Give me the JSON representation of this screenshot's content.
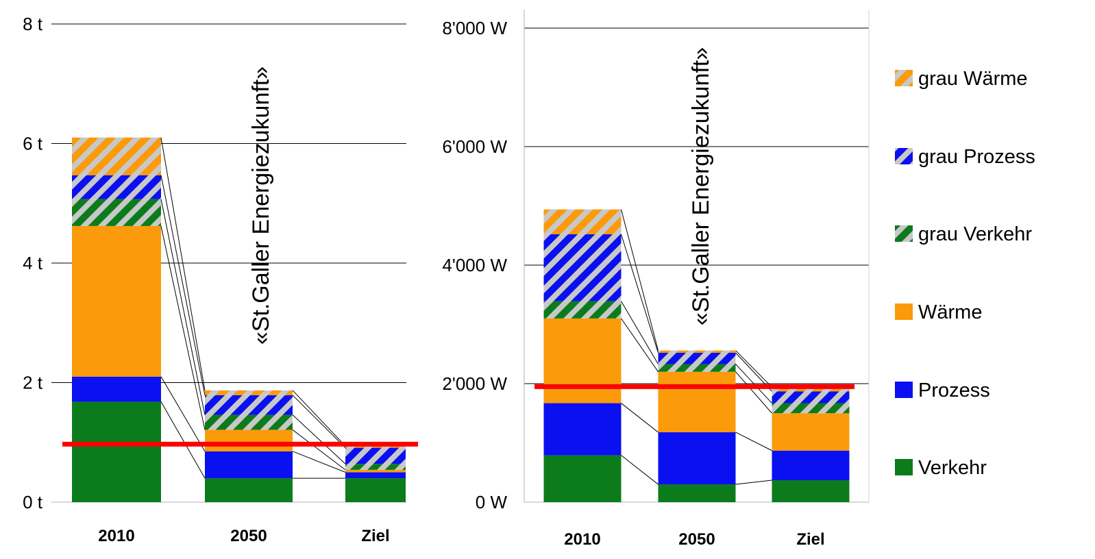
{
  "stack_order": [
    "Verkehr",
    "Prozess",
    "Wärme",
    "grau Verkehr",
    "grau Prozess",
    "grau Wärme"
  ],
  "series_styles": [
    {
      "name": "Verkehr",
      "color": "#0c7b1c",
      "hatched": false
    },
    {
      "name": "Prozess",
      "color": "#0a10f0",
      "hatched": false
    },
    {
      "name": "Wärme",
      "color": "#fb9a0a",
      "hatched": false
    },
    {
      "name": "grau Verkehr",
      "color": "#0c7b1c",
      "hatched": true
    },
    {
      "name": "grau Prozess",
      "color": "#0a10f0",
      "hatched": true
    },
    {
      "name": "grau Wärme",
      "color": "#fb9a0a",
      "hatched": true
    }
  ],
  "target_line_color": "#ff0000",
  "legend": {
    "placement": "right",
    "items": [
      "grau Wärme",
      "grau Prozess",
      "grau Verkehr",
      "Wärme",
      "Prozess",
      "Verkehr"
    ]
  },
  "chart_data": [
    {
      "type": "bar",
      "stacked": true,
      "title": "",
      "xlabel": "",
      "ylabel": "",
      "categories": [
        "2010",
        "2050",
        "Ziel"
      ],
      "ylim": [
        0,
        8
      ],
      "yticks": [
        0,
        2,
        4,
        6,
        8
      ],
      "ytick_labels": [
        "0 t",
        "2 t",
        "4 t",
        "6 t",
        "8 t"
      ],
      "grid": true,
      "series": [
        {
          "name": "Verkehr",
          "values": [
            1.68,
            0.4,
            0.4
          ]
        },
        {
          "name": "Prozess",
          "values": [
            0.42,
            0.45,
            0.1
          ]
        },
        {
          "name": "Wärme",
          "values": [
            2.52,
            0.36,
            0.04
          ]
        },
        {
          "name": "grau Verkehr",
          "values": [
            0.45,
            0.25,
            0.1
          ]
        },
        {
          "name": "grau Prozess",
          "values": [
            0.4,
            0.33,
            0.27
          ]
        },
        {
          "name": "grau Wärme",
          "values": [
            0.63,
            0.08,
            0.03
          ]
        }
      ],
      "target_value": 0.97,
      "annotation": "«St.Galler Energiezukunft»"
    },
    {
      "type": "bar",
      "stacked": true,
      "title": "",
      "xlabel": "",
      "ylabel": "",
      "categories": [
        "2010",
        "2050",
        "Ziel"
      ],
      "ylim": [
        0,
        8000
      ],
      "yticks": [
        0,
        2000,
        4000,
        6000,
        8000
      ],
      "ytick_labels": [
        "0 W",
        "2'000 W",
        "4'000 W",
        "6'000 W",
        "8'000 W"
      ],
      "grid": true,
      "series": [
        {
          "name": "Verkehr",
          "values": [
            790,
            300,
            370
          ]
        },
        {
          "name": "Prozess",
          "values": [
            880,
            880,
            500
          ]
        },
        {
          "name": "Wärme",
          "values": [
            1430,
            1020,
            630
          ]
        },
        {
          "name": "grau Verkehr",
          "values": [
            290,
            130,
            170
          ]
        },
        {
          "name": "grau Prozess",
          "values": [
            1130,
            190,
            200
          ]
        },
        {
          "name": "grau Wärme",
          "values": [
            420,
            40,
            70
          ]
        }
      ],
      "target_value": 1950,
      "annotation": "«St.Galler Energiezukunft»"
    }
  ]
}
